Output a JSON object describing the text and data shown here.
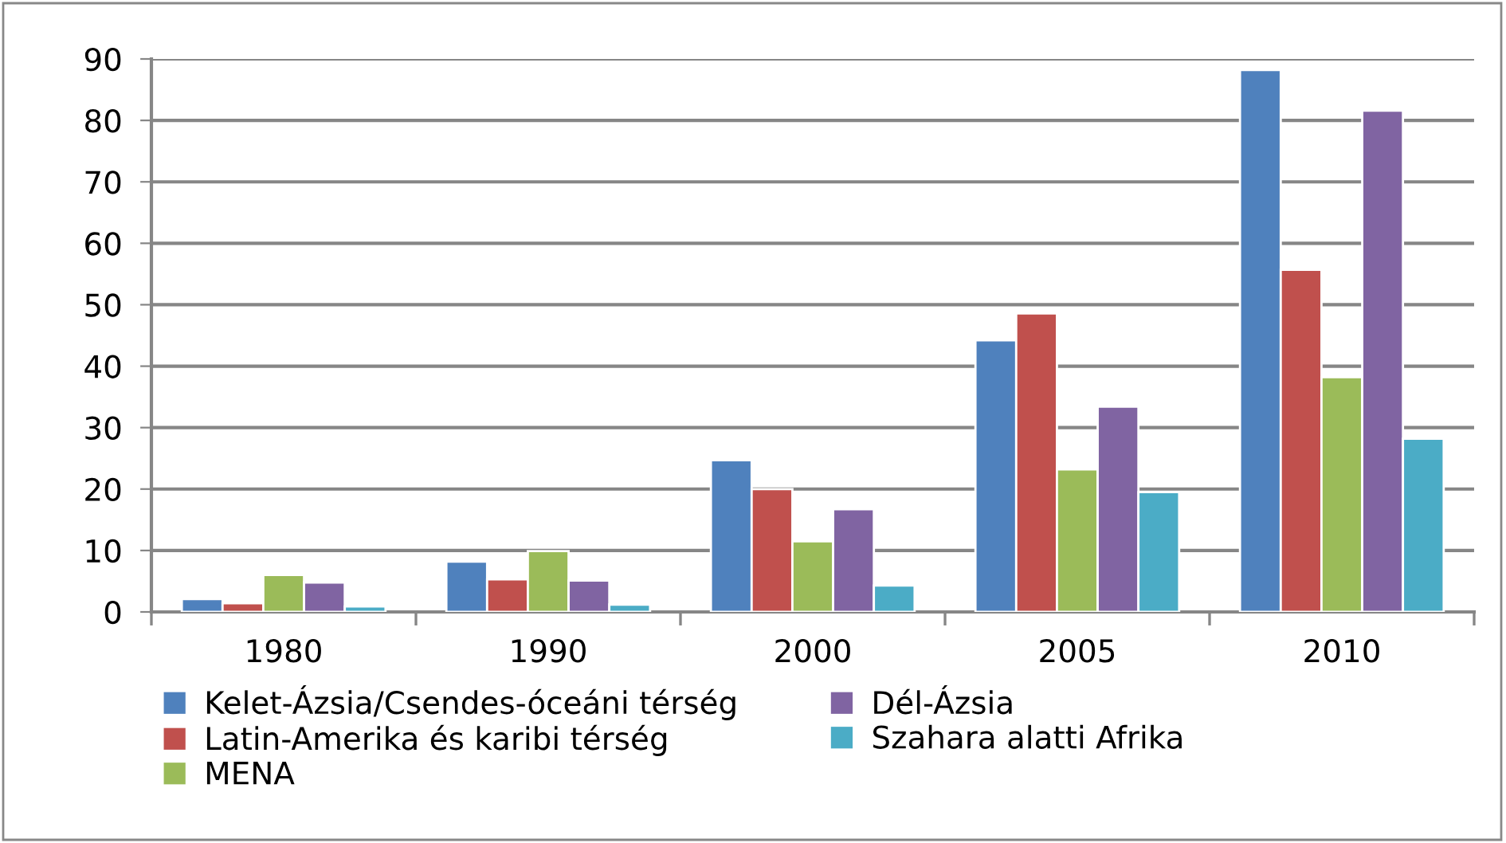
{
  "chart_data": {
    "type": "bar",
    "categories": [
      "1980",
      "1990",
      "2000",
      "2005",
      "2010"
    ],
    "series": [
      {
        "name": "Kelet-Ázsia/Csendes-óceáni térség",
        "color": "#4f81bd",
        "values": [
          2.1,
          8.2,
          24.7,
          44.2,
          88.2
        ]
      },
      {
        "name": "Latin-Amerika és karibi térség",
        "color": "#c0504d",
        "values": [
          1.4,
          5.3,
          20.0,
          48.6,
          55.7
        ]
      },
      {
        "name": "MENA",
        "color": "#9bbb59",
        "values": [
          6.0,
          9.9,
          11.5,
          23.2,
          38.2
        ]
      },
      {
        "name": "Dél-Ázsia",
        "color": "#8064a2",
        "values": [
          4.8,
          5.1,
          16.7,
          33.4,
          81.6
        ]
      },
      {
        "name": "Szahara alatti Afrika",
        "color": "#4bacc6",
        "values": [
          0.9,
          1.2,
          4.3,
          19.5,
          28.2
        ]
      }
    ],
    "ylim": [
      0,
      90
    ],
    "yticks": [
      0,
      10,
      20,
      30,
      40,
      50,
      60,
      70,
      80,
      90
    ],
    "grid": "y",
    "legend": "bottom"
  }
}
